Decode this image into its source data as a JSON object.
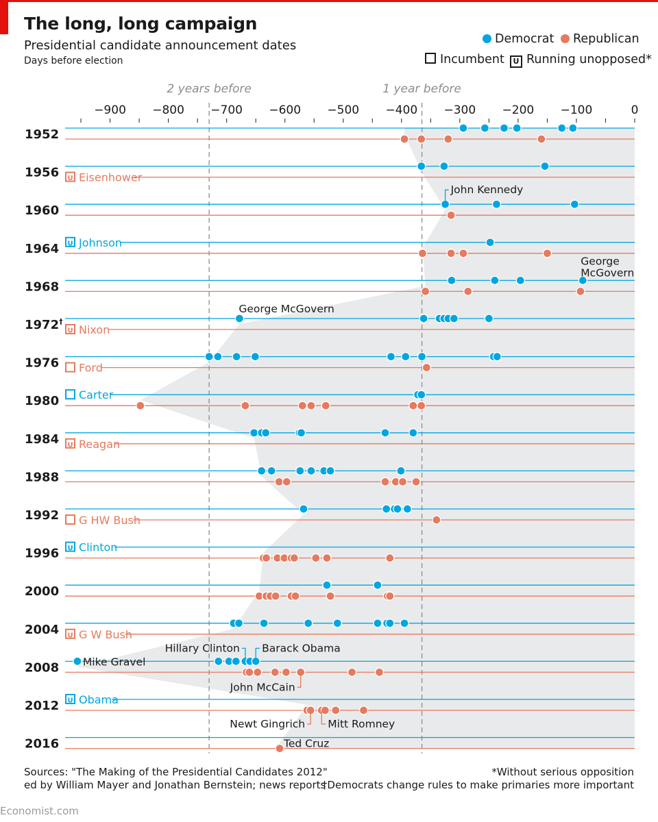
{
  "title": "The long, long campaign",
  "subtitle": "Presidential candidate announcement dates",
  "unit_label": "Days before election",
  "legend": {
    "democrat": "Democrat",
    "republican": "Republican",
    "incumbent": "Incumbent",
    "unopposed": "Running unopposed*",
    "unopposed_symbol": "U"
  },
  "colors": {
    "democrat": "#00a6e0",
    "republican": "#e57a5e",
    "shade": "#e9eaeb",
    "guide": "#8c8c8c"
  },
  "sources_line1": "Sources: \"The Making of the Presidential Candidates 2012\"",
  "sources_line2": "ed by William Mayer and Jonathan Bernstein; news reports",
  "footnote1": "*Without serious opposition",
  "footnote2": "†Democrats change rules to make primaries more important",
  "brand": "Economist.com",
  "chart_data": {
    "type": "scatter",
    "xlabel": "Days before election",
    "xlim": [
      -975,
      0
    ],
    "x_ticks": [
      -900,
      -800,
      -700,
      -600,
      -500,
      -400,
      -300,
      -200,
      -100,
      0
    ],
    "reference_lines": [
      {
        "x": -730,
        "label": "2 years before"
      },
      {
        "x": -365,
        "label": "1 year before"
      }
    ],
    "years": [
      {
        "year": "1952",
        "dem": [
          -294,
          -257,
          -224,
          -202,
          -125,
          -106
        ],
        "rep": [
          -395,
          -366,
          -320,
          -160
        ]
      },
      {
        "year": "1956",
        "rep_label": "Eisenhower",
        "rep_status": "unopposed",
        "dem": [
          -366,
          -327,
          -154
        ],
        "rep": []
      },
      {
        "year": "1960",
        "dem": [
          -325,
          -237,
          -103
        ],
        "rep": [
          -315
        ]
      },
      {
        "year": "1964",
        "dem_label": "Johnson",
        "dem_status": "unopposed",
        "dem": [
          -248
        ],
        "rep": [
          -364,
          -315,
          -294,
          -150
        ]
      },
      {
        "year": "1968",
        "dem": [
          -314,
          -240,
          -196,
          -89
        ],
        "rep": [
          -359,
          -286,
          -93
        ]
      },
      {
        "year": "1972",
        "year_mark": "†",
        "rep_label": "Nixon",
        "rep_status": "unopposed",
        "dem": [
          -678,
          -362,
          -335,
          -327,
          -320,
          -310,
          -250
        ],
        "rep": []
      },
      {
        "year": "1976",
        "inc_label": "Ford",
        "inc_party": "rep",
        "dem": [
          -730,
          -715,
          -683,
          -651,
          -418,
          -393,
          -365,
          -242,
          -236
        ],
        "rep": [
          -357
        ]
      },
      {
        "year": "1980",
        "inc_label": "Carter",
        "inc_party": "dem",
        "dem": [
          -372,
          -366
        ],
        "rep": [
          -848,
          -668,
          -570,
          -555,
          -530,
          -380,
          -366
        ]
      },
      {
        "year": "1984",
        "rep_label": "Reagan",
        "rep_status": "unopposed",
        "dem": [
          -653,
          -640,
          -633,
          -575,
          -572,
          -428,
          -380
        ],
        "rep": []
      },
      {
        "year": "1988",
        "dem": [
          -640,
          -623,
          -574,
          -555,
          -533,
          -522,
          -401
        ],
        "rep": [
          -610,
          -597,
          -428,
          -410,
          -398,
          -375
        ]
      },
      {
        "year": "1992",
        "inc_label": "G HW Bush",
        "inc_party": "rep",
        "dem": [
          -568,
          -426,
          -412,
          -407,
          -390
        ],
        "rep": [
          -340
        ]
      },
      {
        "year": "1996",
        "dem_label": "Clinton",
        "dem_status": "unopposed",
        "dem": [],
        "rep": [
          -637,
          -632,
          -613,
          -601,
          -589,
          -584,
          -547,
          -528,
          -420
        ]
      },
      {
        "year": "2000",
        "dem": [
          -528,
          -441
        ],
        "rep": [
          -644,
          -632,
          -625,
          -616,
          -589,
          -582,
          -522,
          -424,
          -420
        ]
      },
      {
        "year": "2004",
        "rep_label": "G W Bush",
        "rep_status": "unopposed",
        "dem": [
          -688,
          -679,
          -636,
          -560,
          -510,
          -441,
          -425,
          -420,
          -395
        ],
        "rep": []
      },
      {
        "year": "2008",
        "dem": [
          -956,
          -714,
          -696,
          -684,
          -668,
          -660,
          -650
        ],
        "rep": [
          -666,
          -661,
          -647,
          -617,
          -598,
          -573,
          -485,
          -438
        ]
      },
      {
        "year": "2012",
        "dem_label": "Obama",
        "dem_status": "unopposed",
        "dem": [],
        "rep": [
          -562,
          -556,
          -537,
          -531,
          -513,
          -465
        ]
      },
      {
        "year": "2016",
        "dem": [],
        "rep": [
          -609
        ]
      }
    ],
    "annotations": [
      {
        "text": "John Kennedy",
        "year": "1960",
        "party": "dem",
        "x": -325
      },
      {
        "text": "George",
        "text2": "McGovern",
        "year": "1968",
        "party": "dem",
        "x": -89
      },
      {
        "text": "George McGovern",
        "year": "1972",
        "party": "dem",
        "x": -678
      },
      {
        "text": "Mike Gravel",
        "year": "2008",
        "party": "dem",
        "x": -956
      },
      {
        "text": "Hillary Clinton",
        "year": "2008",
        "party": "dem",
        "x": -668
      },
      {
        "text": "Barack Obama",
        "year": "2008",
        "party": "dem",
        "x": -650
      },
      {
        "text": "John McCain",
        "year": "2008",
        "party": "rep",
        "x": -573
      },
      {
        "text": "Newt Gingrich",
        "year": "2012",
        "party": "rep",
        "x": -556
      },
      {
        "text": "Mitt Romney",
        "year": "2012",
        "party": "rep",
        "x": -537
      },
      {
        "text": "Ted Cruz",
        "year": "2016",
        "party": "rep",
        "x": -609
      }
    ]
  }
}
